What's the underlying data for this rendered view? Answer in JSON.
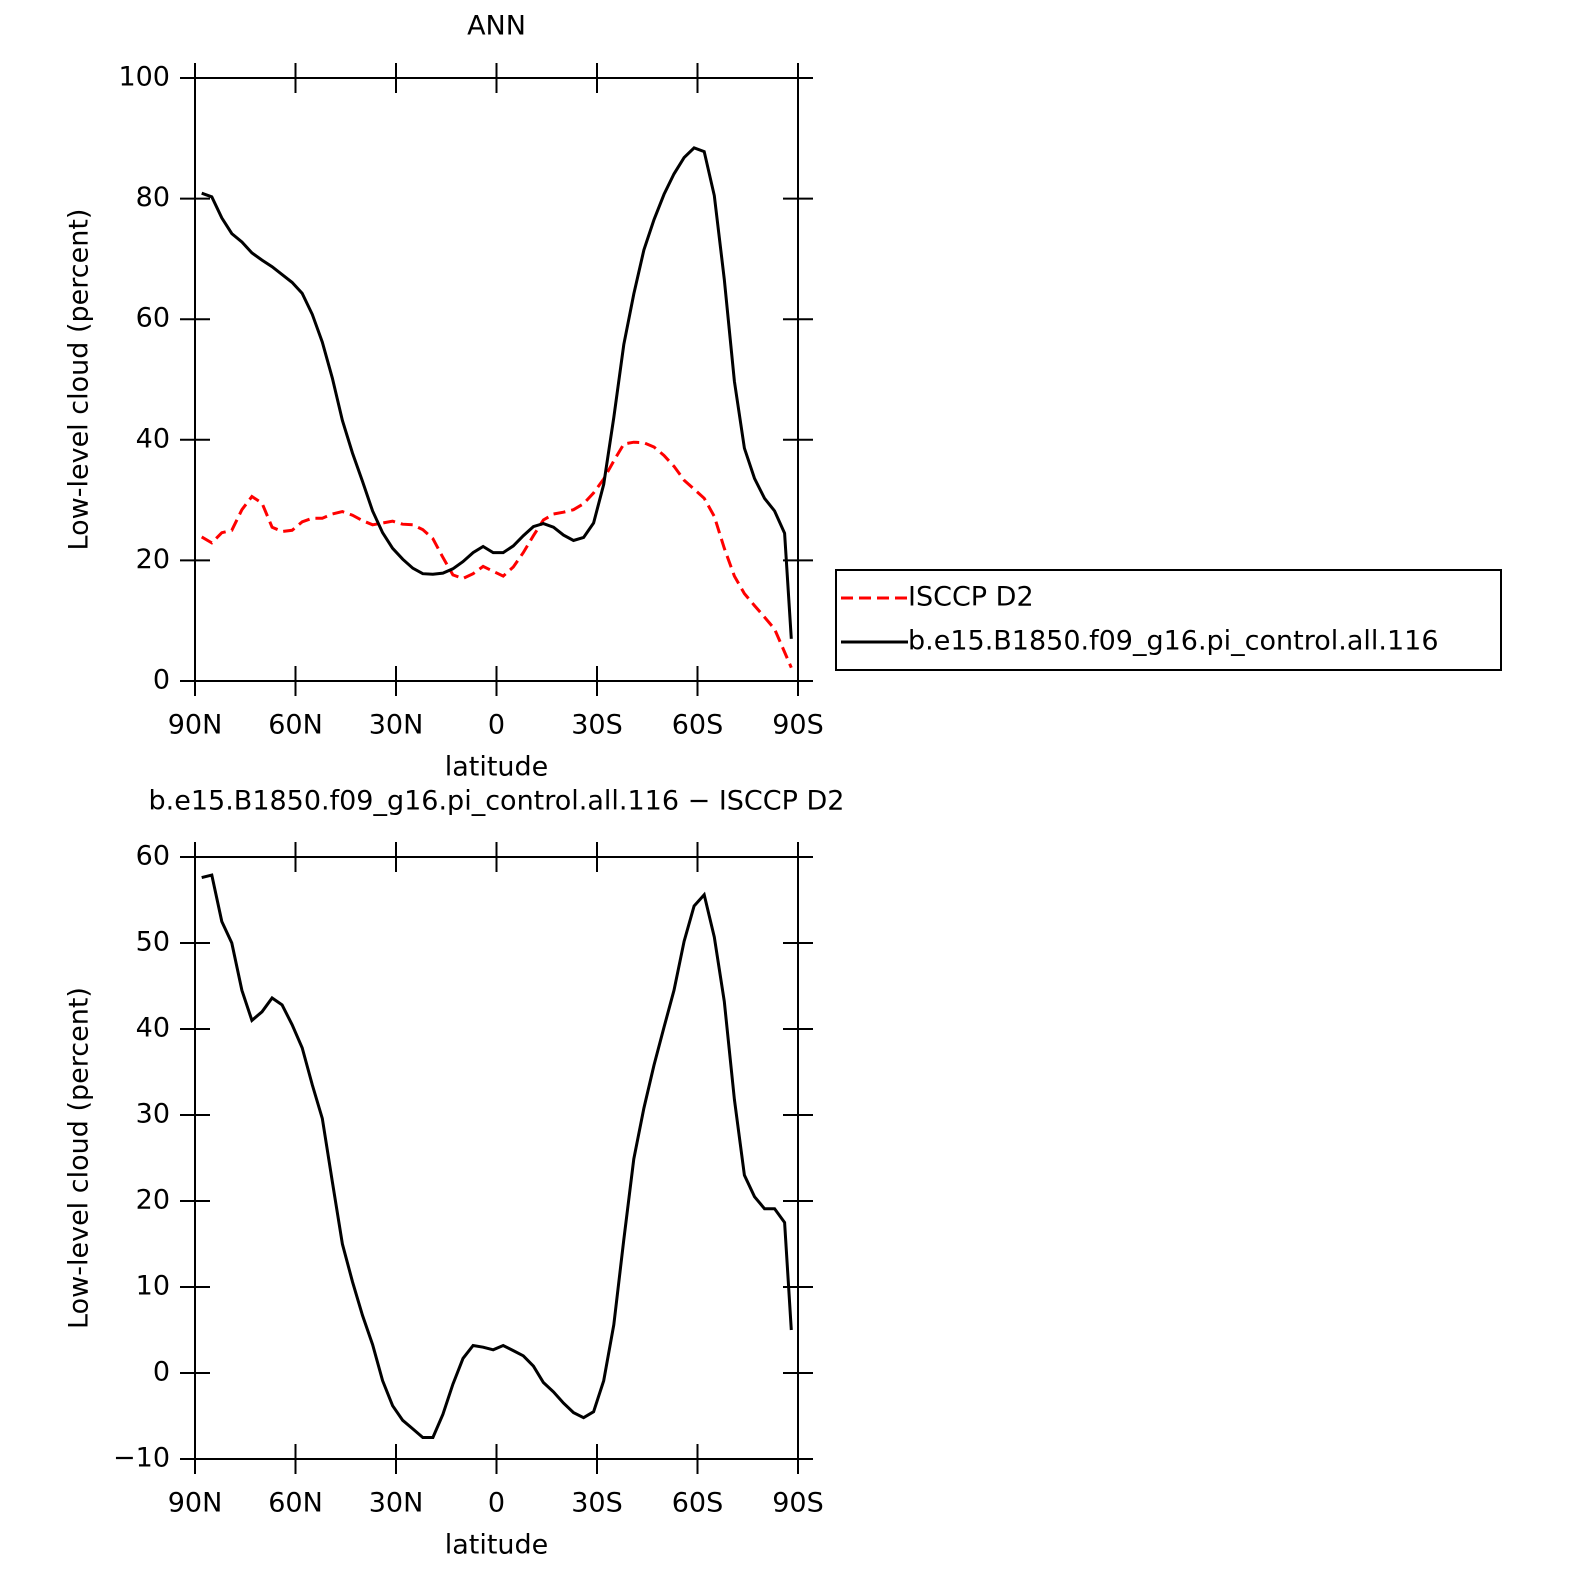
{
  "chart_data": [
    {
      "type": "line",
      "title": "ANN",
      "xlabel": "latitude",
      "ylabel": "Low-level cloud (percent)",
      "xlim": [
        90,
        -90
      ],
      "xticks": [
        {
          "value": 90,
          "label": "90N"
        },
        {
          "value": 60,
          "label": "60N"
        },
        {
          "value": 30,
          "label": "30N"
        },
        0,
        {
          "value": -30,
          "label": "30S"
        },
        {
          "value": -60,
          "label": "60S"
        },
        {
          "value": -90,
          "label": "90S"
        }
      ],
      "ylim": [
        0,
        100
      ],
      "yticks": [
        0,
        20,
        40,
        60,
        80,
        100
      ],
      "legend": "right",
      "x": [
        88,
        85,
        82,
        79,
        76,
        73,
        70,
        67,
        64,
        61,
        58,
        55,
        52,
        49,
        46,
        43,
        40,
        37,
        34,
        31,
        28,
        25,
        22,
        19,
        16,
        13,
        10,
        7,
        4,
        1,
        -2,
        -5,
        -8,
        -11,
        -14,
        -17,
        -20,
        -23,
        -26,
        -29,
        -32,
        -35,
        -38,
        -41,
        -44,
        -47,
        -50,
        -53,
        -56,
        -59,
        -62,
        -65,
        -68,
        -71,
        -74,
        -77,
        -80,
        -83,
        -86,
        -88
      ],
      "series": [
        {
          "name": "ISCCP D2",
          "color": "#ff0000",
          "dash": true,
          "values": [
            23.9,
            22.9,
            24.6,
            25,
            28.4,
            30.6,
            29.5,
            25.5,
            24.8,
            25,
            26.4,
            27,
            27,
            27.7,
            28.1,
            27.5,
            26.6,
            25.9,
            26.2,
            26.5,
            26,
            25.9,
            25.1,
            23.6,
            20.5,
            17.6,
            17,
            17.8,
            19,
            18.2,
            17.4,
            18.9,
            21.3,
            24.1,
            26.7,
            27.7,
            28,
            28.4,
            29.4,
            31.2,
            33.5,
            36.5,
            39.3,
            39.6,
            39.5,
            38.8,
            37.4,
            35.6,
            33.3,
            31.8,
            30.3,
            27.3,
            22,
            17.4,
            14.5,
            12.5,
            10.6,
            8.6,
            4.8,
            2.2
          ]
        },
        {
          "name": "b.e15.B1850.f09_g16.pi_control.all.116",
          "color": "#000000",
          "dash": false,
          "values": [
            80.9,
            80.3,
            76.8,
            74.2,
            72.8,
            71,
            69.8,
            68.7,
            67.4,
            66.1,
            64.3,
            60.8,
            56.2,
            50.2,
            43.2,
            37.8,
            33.1,
            28.2,
            24.6,
            22,
            20.2,
            18.7,
            17.8,
            17.7,
            17.9,
            18.6,
            19.8,
            21.3,
            22.3,
            21.3,
            21.3,
            22.4,
            24.1,
            25.6,
            26.1,
            25.5,
            24.2,
            23.3,
            23.8,
            26.2,
            32.6,
            43.7,
            55.8,
            64.2,
            71.5,
            76.5,
            80.7,
            84.1,
            86.8,
            88.4,
            87.8,
            80.5,
            66.6,
            49.7,
            38.6,
            33.6,
            30.3,
            28.2,
            24.5,
            7
          ]
        }
      ]
    },
    {
      "type": "line",
      "title": "b.e15.B1850.f09_g16.pi_control.all.116 − ISCCP D2",
      "xlabel": "latitude",
      "ylabel": "Low-level cloud (percent)",
      "xlim": [
        90,
        -90
      ],
      "xticks": [
        {
          "value": 90,
          "label": "90N"
        },
        {
          "value": 60,
          "label": "60N"
        },
        {
          "value": 30,
          "label": "30N"
        },
        0,
        {
          "value": -30,
          "label": "30S"
        },
        {
          "value": -60,
          "label": "60S"
        },
        {
          "value": -90,
          "label": "90S"
        }
      ],
      "ylim": [
        -10,
        60
      ],
      "yticks": [
        {
          "value": -10,
          "label": "−10"
        },
        0,
        10,
        20,
        30,
        40,
        50,
        60
      ],
      "x": [
        88,
        85,
        82,
        79,
        76,
        73,
        70,
        67,
        64,
        61,
        58,
        55,
        52,
        49,
        46,
        43,
        40,
        37,
        34,
        31,
        28,
        25,
        22,
        19,
        16,
        13,
        10,
        7,
        4,
        1,
        -2,
        -5,
        -8,
        -11,
        -14,
        -17,
        -20,
        -23,
        -26,
        -29,
        -32,
        -35,
        -38,
        -41,
        -44,
        -47,
        -50,
        -53,
        -56,
        -59,
        -62,
        -65,
        -68,
        -71,
        -74,
        -77,
        -80,
        -83,
        -86,
        -88
      ],
      "series": [
        {
          "color": "#000000",
          "dash": false,
          "values": [
            57.6,
            57.9,
            52.5,
            50,
            44.5,
            41,
            42,
            43.6,
            42.8,
            40.5,
            37.8,
            33.5,
            29.6,
            22.2,
            15,
            10.6,
            6.7,
            3.3,
            -0.9,
            -3.8,
            -5.5,
            -6.5,
            -7.5,
            -7.5,
            -4.8,
            -1.3,
            1.7,
            3.2,
            3,
            2.7,
            3.2,
            2.6,
            2,
            0.8,
            -1.1,
            -2.2,
            -3.5,
            -4.6,
            -5.2,
            -4.5,
            -0.9,
            5.6,
            15.5,
            24.9,
            30.8,
            35.8,
            40.2,
            44.5,
            50.2,
            54.3,
            55.6,
            50.7,
            43.2,
            31.8,
            23,
            20.5,
            19.1,
            19.1,
            17.5,
            5
          ]
        }
      ]
    }
  ]
}
